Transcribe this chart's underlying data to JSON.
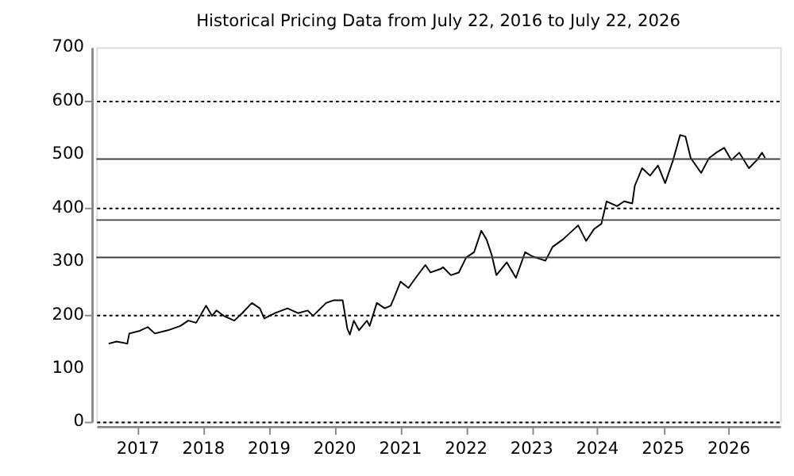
{
  "chart_data": {
    "type": "line",
    "title": "Historical Pricing Data from July 22, 2016 to July 22, 2026",
    "x": [
      "2016-07-22",
      "2016-09-05",
      "2016-11-03",
      "2016-11-14",
      "2017-01-12",
      "2017-02-25",
      "2017-04-05",
      "2017-06-17",
      "2017-08-25",
      "2017-10-08",
      "2017-11-21",
      "2018-01-15",
      "2018-02-17",
      "2018-03-14",
      "2018-04-23",
      "2018-06-21",
      "2018-08-04",
      "2018-09-27",
      "2018-11-10",
      "2018-12-05",
      "2019-02-03",
      "2019-04-13",
      "2019-06-10",
      "2019-08-04",
      "2019-09-02",
      "2019-11-14",
      "2019-12-24",
      "2020-02-14",
      "2020-03-11",
      "2020-03-25",
      "2020-04-16",
      "2020-05-15",
      "2020-06-28",
      "2020-07-13",
      "2020-08-22",
      "2020-10-05",
      "2020-11-07",
      "2020-11-25",
      "2021-01-01",
      "2021-02-14",
      "2021-03-26",
      "2021-05-19",
      "2021-06-17",
      "2021-08-14",
      "2021-08-25",
      "2021-10-08",
      "2021-11-21",
      "2022-01-01",
      "2022-02-14",
      "2022-03-26",
      "2022-04-24",
      "2022-05-23",
      "2022-06-18",
      "2022-08-15",
      "2022-10-05",
      "2022-11-25",
      "2023-01-05",
      "2023-03-18",
      "2023-04-27",
      "2023-06-24",
      "2023-09-16",
      "2023-10-30",
      "2023-12-13",
      "2024-01-23",
      "2024-02-21",
      "2024-04-19",
      "2024-05-29",
      "2024-07-13",
      "2024-07-27",
      "2024-09-06",
      "2024-10-20",
      "2024-12-03",
      "2025-01-12",
      "2025-02-25",
      "2025-04-05",
      "2025-05-05",
      "2025-06-03",
      "2025-07-31",
      "2025-09-13",
      "2025-10-23",
      "2025-12-06",
      "2026-01-15",
      "2026-02-28",
      "2026-04-23",
      "2026-06-06",
      "2026-07-05",
      "2026-07-22"
    ],
    "series": [
      {
        "color": "#000000",
        "values": [
          146,
          150,
          146,
          165,
          170,
          177,
          165,
          171,
          179,
          189,
          185,
          217,
          198,
          208,
          198,
          189,
          203,
          222,
          212,
          193,
          203,
          212,
          203,
          208,
          198,
          222,
          227,
          227,
          174,
          163,
          189,
          171,
          189,
          179,
          222,
          212,
          217,
          231,
          262,
          250,
          269,
          293,
          279,
          286,
          289,
          274,
          279,
          307,
          317,
          357,
          341,
          312,
          274,
          298,
          269,
          317,
          309,
          301,
          327,
          341,
          367,
          338,
          360,
          370,
          412,
          403,
          412,
          408,
          441,
          474,
          460,
          479,
          446,
          489,
          536,
          533,
          493,
          465,
          493,
          503,
          512,
          489,
          503,
          474,
          489,
          503,
          493
        ]
      }
    ],
    "xlim": [
      "2016-05-15",
      "2026-10-14"
    ],
    "xticks": [
      "2017",
      "2018",
      "2019",
      "2020",
      "2021",
      "2022",
      "2023",
      "2024",
      "2025",
      "2026"
    ],
    "ylim": [
      0,
      700
    ],
    "yticks": [
      0,
      100,
      200,
      300,
      400,
      500,
      600,
      700
    ],
    "grid": "y",
    "marker": "none",
    "line_style": "solid",
    "ref_lines": [
      {
        "axis": "y",
        "value": 491,
        "color": "#404040",
        "line_style": "solid"
      },
      {
        "axis": "y",
        "value": 377,
        "color": "#404040",
        "line_style": "solid"
      },
      {
        "axis": "y",
        "value": 307,
        "color": "#404040",
        "line_style": "solid"
      }
    ]
  }
}
